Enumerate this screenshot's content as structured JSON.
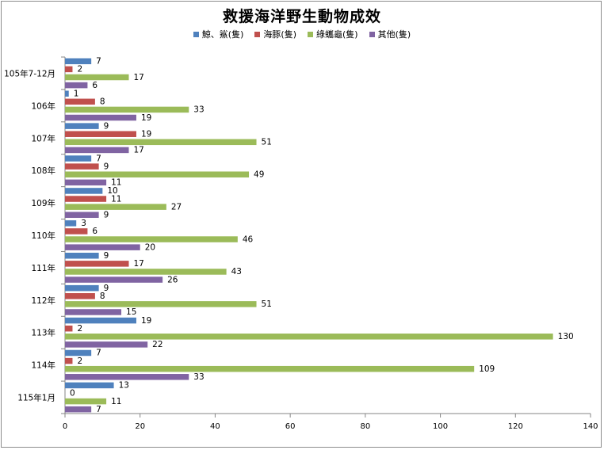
{
  "chart_data": {
    "type": "bar",
    "orientation": "horizontal",
    "title": "救援海洋野生動物成效",
    "categories": [
      "105年7-12月",
      "106年",
      "107年",
      "108年",
      "109年",
      "110年",
      "111年",
      "112年",
      "113年",
      "114年",
      "115年1月"
    ],
    "series": [
      {
        "name": "鯨、鯊(隻)",
        "color": "#4f81bd",
        "values": [
          7,
          1,
          9,
          7,
          10,
          3,
          9,
          9,
          19,
          7,
          13
        ]
      },
      {
        "name": "海豚(隻)",
        "color": "#c0504d",
        "values": [
          2,
          8,
          19,
          9,
          11,
          6,
          17,
          8,
          2,
          2,
          0
        ]
      },
      {
        "name": "綠蠵龜(隻)",
        "color": "#9bbb59",
        "values": [
          17,
          33,
          51,
          49,
          27,
          46,
          43,
          51,
          130,
          109,
          11
        ]
      },
      {
        "name": "其他(隻)",
        "color": "#8064a2",
        "values": [
          6,
          19,
          17,
          11,
          9,
          20,
          26,
          15,
          22,
          33,
          7
        ]
      }
    ],
    "xlim": [
      0,
      140
    ],
    "xticks": [
      0,
      20,
      40,
      60,
      80,
      100,
      120,
      140
    ],
    "xlabel": "",
    "ylabel": "",
    "legend_position": "top"
  }
}
